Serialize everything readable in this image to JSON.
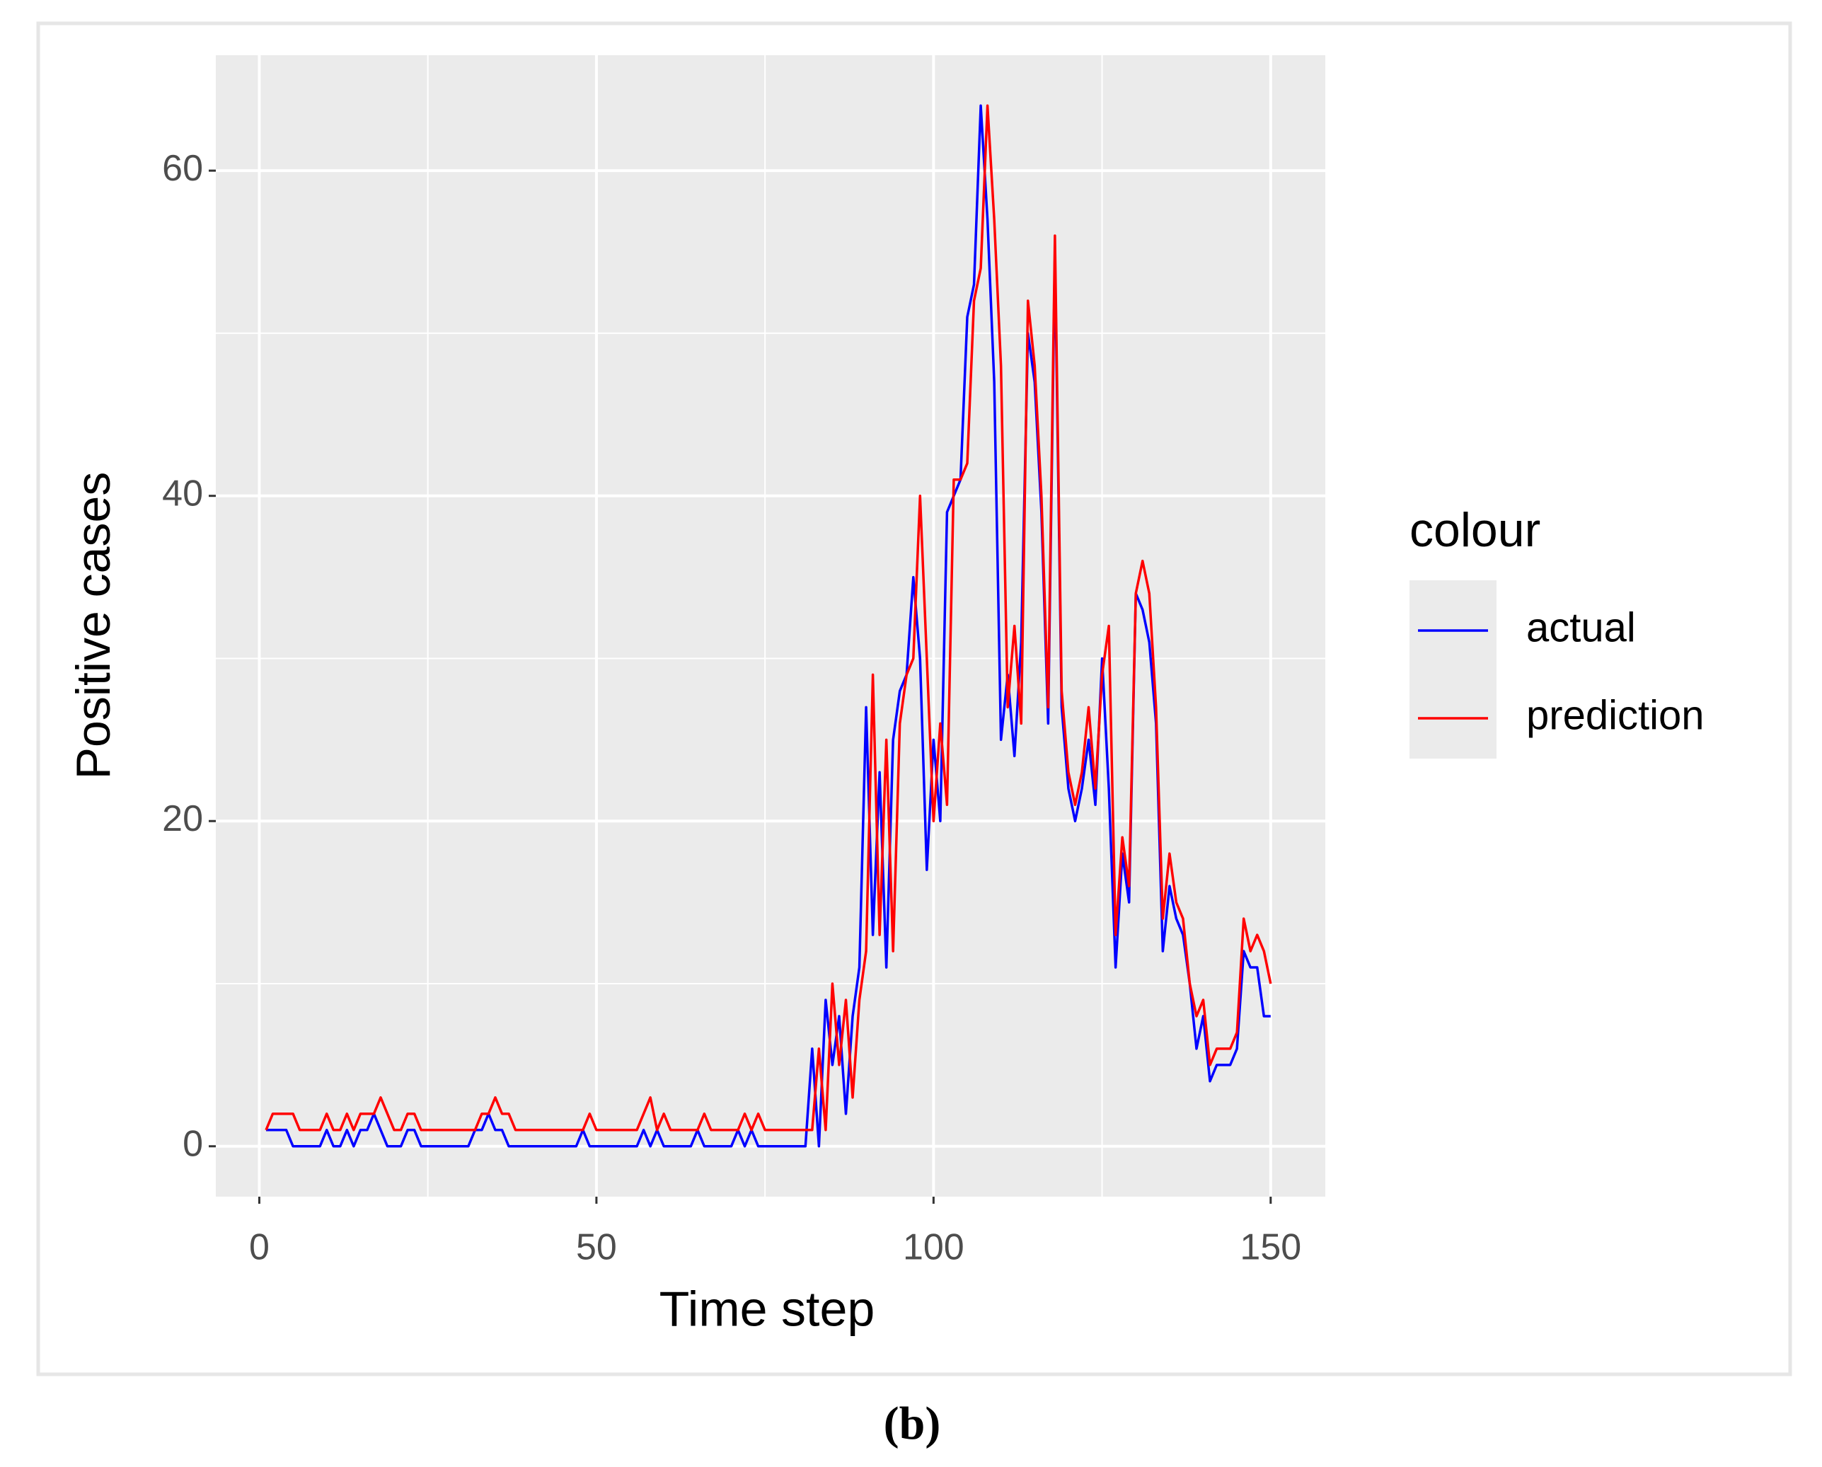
{
  "chart_data": {
    "type": "line",
    "caption": "(b)",
    "x_label": "Time step",
    "y_label": "Positive cases",
    "legend_title": "colour",
    "x": [
      1,
      2,
      3,
      4,
      5,
      6,
      7,
      8,
      9,
      10,
      11,
      12,
      13,
      14,
      15,
      16,
      17,
      18,
      19,
      20,
      21,
      22,
      23,
      24,
      25,
      26,
      27,
      28,
      29,
      30,
      31,
      32,
      33,
      34,
      35,
      36,
      37,
      38,
      39,
      40,
      41,
      42,
      43,
      44,
      45,
      46,
      47,
      48,
      49,
      50,
      51,
      52,
      53,
      54,
      55,
      56,
      57,
      58,
      59,
      60,
      61,
      62,
      63,
      64,
      65,
      66,
      67,
      68,
      69,
      70,
      71,
      72,
      73,
      74,
      75,
      76,
      77,
      78,
      79,
      80,
      81,
      82,
      83,
      84,
      85,
      86,
      87,
      88,
      89,
      90,
      91,
      92,
      93,
      94,
      95,
      96,
      97,
      98,
      99,
      100,
      101,
      102,
      103,
      104,
      105,
      106,
      107,
      108,
      109,
      110,
      111,
      112,
      113,
      114,
      115,
      116,
      117,
      118,
      119,
      120,
      121,
      122,
      123,
      124,
      125,
      126,
      127,
      128,
      129,
      130,
      131,
      132,
      133,
      134,
      135,
      136,
      137,
      138,
      139,
      140,
      141,
      142,
      143,
      144,
      145,
      146,
      147,
      148,
      149,
      150
    ],
    "series": [
      {
        "name": "actual",
        "color": "#0000ff",
        "values": [
          1,
          1,
          1,
          1,
          0,
          0,
          0,
          0,
          0,
          1,
          0,
          0,
          1,
          0,
          1,
          1,
          2,
          1,
          0,
          0,
          0,
          1,
          1,
          0,
          0,
          0,
          0,
          0,
          0,
          0,
          0,
          1,
          1,
          2,
          1,
          1,
          0,
          0,
          0,
          0,
          0,
          0,
          0,
          0,
          0,
          0,
          0,
          1,
          0,
          0,
          0,
          0,
          0,
          0,
          0,
          0,
          1,
          0,
          1,
          0,
          0,
          0,
          0,
          0,
          1,
          0,
          0,
          0,
          0,
          0,
          1,
          0,
          1,
          0,
          0,
          0,
          0,
          0,
          0,
          0,
          0,
          6,
          0,
          9,
          5,
          8,
          2,
          8,
          11,
          27,
          13,
          23,
          11,
          25,
          28,
          29,
          35,
          30,
          17,
          25,
          20,
          39,
          40,
          41,
          51,
          53,
          64,
          57,
          47,
          25,
          29,
          24,
          31,
          50,
          47,
          39,
          26,
          55,
          27,
          22,
          20,
          22,
          25,
          21,
          30,
          22,
          11,
          18,
          15,
          34,
          33,
          31,
          26,
          12,
          16,
          14,
          13,
          10,
          6,
          8,
          4,
          5,
          5,
          5,
          6,
          12,
          11,
          11,
          8,
          8
        ]
      },
      {
        "name": "prediction",
        "color": "#ff0000",
        "values": [
          1,
          2,
          2,
          2,
          2,
          1,
          1,
          1,
          1,
          2,
          1,
          1,
          2,
          1,
          2,
          2,
          2,
          3,
          2,
          1,
          1,
          2,
          2,
          1,
          1,
          1,
          1,
          1,
          1,
          1,
          1,
          1,
          2,
          2,
          3,
          2,
          2,
          1,
          1,
          1,
          1,
          1,
          1,
          1,
          1,
          1,
          1,
          1,
          2,
          1,
          1,
          1,
          1,
          1,
          1,
          1,
          2,
          3,
          1,
          2,
          1,
          1,
          1,
          1,
          1,
          2,
          1,
          1,
          1,
          1,
          1,
          2,
          1,
          2,
          1,
          1,
          1,
          1,
          1,
          1,
          1,
          1,
          6,
          1,
          10,
          5,
          9,
          3,
          9,
          12,
          29,
          13,
          25,
          12,
          26,
          29,
          30,
          40,
          30,
          20,
          26,
          21,
          41,
          41,
          42,
          52,
          54,
          64,
          57,
          48,
          27,
          32,
          26,
          52,
          48,
          40,
          27,
          56,
          28,
          23,
          21,
          23,
          27,
          22,
          29,
          32,
          13,
          19,
          16,
          34,
          36,
          34,
          27,
          14,
          18,
          15,
          14,
          10,
          8,
          9,
          5,
          6,
          6,
          6,
          7,
          14,
          12,
          13,
          12,
          10
        ]
      }
    ],
    "xlim": [
      -6.45,
      158.1
    ],
    "xticks": [
      0,
      50,
      100,
      150
    ],
    "ylim": [
      -3.1,
      67.1
    ],
    "yticks": [
      0,
      20,
      40,
      60
    ],
    "grid": true
  }
}
